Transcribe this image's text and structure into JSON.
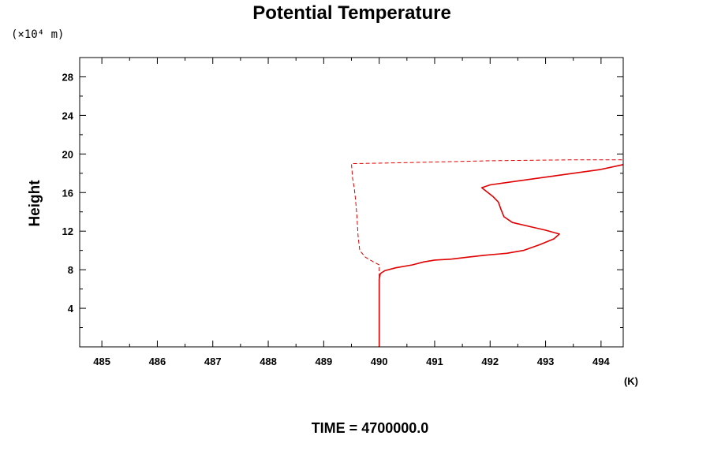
{
  "chart_data": {
    "type": "line",
    "title": "Potential Temperature",
    "xlabel": "",
    "ylabel": "Height",
    "x_unit": "(K)",
    "y_unit": "(×10⁴ m)",
    "xlim": [
      484.6,
      494.4
    ],
    "ylim": [
      0,
      30
    ],
    "x_ticks": [
      485,
      486,
      487,
      488,
      489,
      490,
      491,
      492,
      493,
      494
    ],
    "y_ticks": [
      4,
      8,
      12,
      16,
      20,
      24,
      28
    ],
    "grid": false,
    "legend": "none",
    "footer": "TIME = 4700000.0",
    "series": [
      {
        "style": "solid",
        "color": "#e00000",
        "points": [
          [
            490.0,
            0.0
          ],
          [
            490.0,
            4.0
          ],
          [
            490.0,
            7.0
          ],
          [
            490.02,
            7.6
          ],
          [
            490.1,
            7.9
          ],
          [
            490.3,
            8.2
          ],
          [
            490.6,
            8.5
          ],
          [
            490.8,
            8.8
          ],
          [
            491.0,
            9.0
          ],
          [
            491.3,
            9.1
          ],
          [
            491.6,
            9.3
          ],
          [
            491.9,
            9.5
          ],
          [
            492.3,
            9.7
          ],
          [
            492.6,
            10.0
          ],
          [
            492.9,
            10.6
          ],
          [
            493.15,
            11.2
          ],
          [
            493.25,
            11.7
          ],
          [
            493.0,
            12.1
          ],
          [
            492.7,
            12.5
          ],
          [
            492.4,
            12.9
          ],
          [
            492.25,
            13.5
          ],
          [
            492.2,
            14.2
          ],
          [
            492.15,
            15.0
          ],
          [
            492.05,
            15.6
          ],
          [
            491.85,
            16.5
          ],
          [
            492.0,
            16.8
          ],
          [
            492.5,
            17.2
          ],
          [
            493.0,
            17.6
          ],
          [
            493.5,
            18.0
          ],
          [
            494.0,
            18.4
          ],
          [
            494.4,
            18.9
          ]
        ]
      },
      {
        "style": "dashed",
        "color": "#e00000",
        "points": [
          [
            490.0,
            0.0
          ],
          [
            490.0,
            4.0
          ],
          [
            490.0,
            8.0
          ],
          [
            490.0,
            8.5
          ],
          [
            489.9,
            8.8
          ],
          [
            489.75,
            9.3
          ],
          [
            489.65,
            10.0
          ],
          [
            489.62,
            11.5
          ],
          [
            489.6,
            13.5
          ],
          [
            489.57,
            15.5
          ],
          [
            489.55,
            16.5
          ],
          [
            489.52,
            17.5
          ],
          [
            489.5,
            19.0
          ],
          [
            490.5,
            19.1
          ],
          [
            492.0,
            19.3
          ],
          [
            493.5,
            19.4
          ],
          [
            494.4,
            19.4
          ]
        ]
      }
    ]
  }
}
